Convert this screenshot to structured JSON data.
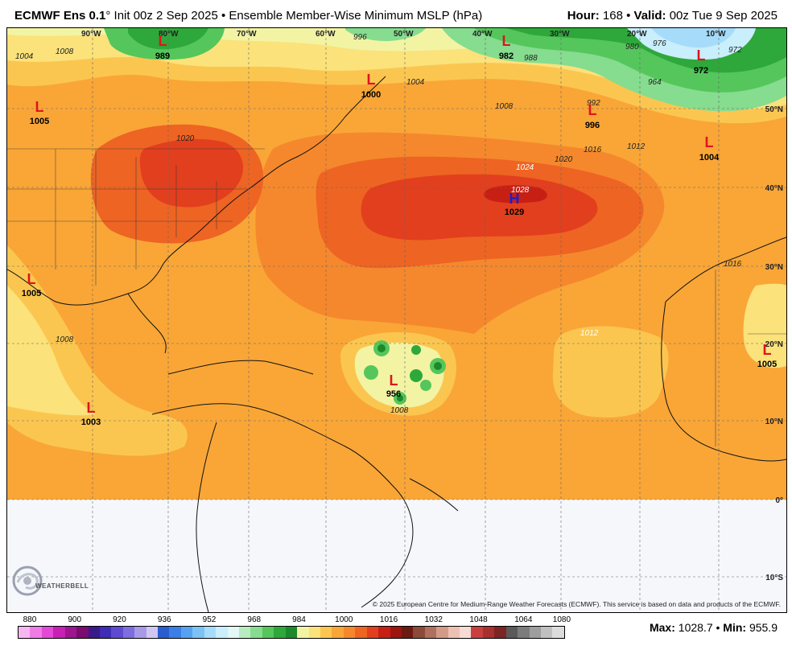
{
  "header": {
    "model_name": "ECMWF Ens 0.1",
    "degree_symbol": "°",
    "init_text": "Init 00z 2 Sep 2025",
    "separator": "•",
    "product_text": "Ensemble Member-Wise Minimum MSLP (hPa)",
    "hour_label": "Hour:",
    "hour_value": "168",
    "valid_label": "Valid:",
    "valid_value": "00z Tue 9 Sep 2025"
  },
  "map": {
    "longitude_labels": [
      "90°W",
      "80°W",
      "70°W",
      "60°W",
      "50°W",
      "40°W",
      "30°W",
      "20°W",
      "10°W"
    ],
    "latitude_labels": [
      "50°N",
      "40°N",
      "30°N",
      "20°N",
      "10°N",
      "0°",
      "10°S"
    ],
    "contour_labels": [
      "1004",
      "1008",
      "1012",
      "1016",
      "1020",
      "1024",
      "1028",
      "996",
      "988",
      "980",
      "976",
      "972",
      "964",
      "992"
    ],
    "pressure_centers": [
      {
        "type": "L",
        "value": "989",
        "color": "#e0141e"
      },
      {
        "type": "L",
        "value": "982",
        "color": "#e0141e"
      },
      {
        "type": "L",
        "value": "972",
        "color": "#e0141e"
      },
      {
        "type": "L",
        "value": "1000",
        "color": "#e0141e"
      },
      {
        "type": "L",
        "value": "996",
        "color": "#e0141e"
      },
      {
        "type": "L",
        "value": "1004",
        "color": "#e0141e"
      },
      {
        "type": "L",
        "value": "1005",
        "color": "#e0141e"
      },
      {
        "type": "H",
        "value": "1029",
        "color": "#1a20d0"
      },
      {
        "type": "L",
        "value": "1005",
        "color": "#e0141e"
      },
      {
        "type": "L",
        "value": "956",
        "color": "#e0141e"
      },
      {
        "type": "L",
        "value": "1005",
        "color": "#e0141e"
      },
      {
        "type": "L",
        "value": "1003",
        "color": "#e0141e"
      }
    ]
  },
  "colorbar": {
    "ticks": [
      "880",
      "900",
      "920",
      "936",
      "952",
      "968",
      "984",
      "1000",
      "1016",
      "1032",
      "1048",
      "1064",
      "1080"
    ],
    "colors": [
      "#f7b6f2",
      "#ef7be6",
      "#e448d6",
      "#c81fb4",
      "#9e1590",
      "#7a0d6e",
      "#3a1a8a",
      "#3f2db4",
      "#5d4ad0",
      "#7e6ddf",
      "#a89ae9",
      "#cfc7f2",
      "#2a5cd0",
      "#3a7ee6",
      "#56a2f0",
      "#7cc2f6",
      "#a6dcfa",
      "#c9eefc",
      "#e3f7f4",
      "#b8ecc0",
      "#86dc8f",
      "#55c65c",
      "#2ea83a",
      "#1c8a2a",
      "#f2f4a4",
      "#fbe27a",
      "#fbc650",
      "#f9a637",
      "#f5882d",
      "#ee6423",
      "#e23f1e",
      "#c81f14",
      "#9e1410",
      "#6e1a14",
      "#8c4a3a",
      "#b0705e",
      "#d49a88",
      "#eec0b4",
      "#f6dcd4",
      "#c94040",
      "#a83030",
      "#7d2424",
      "#5a5a5a",
      "#7c7c7c",
      "#9e9e9e",
      "#c0c0c0",
      "#dcdcdc"
    ]
  },
  "stats": {
    "max_label": "Max:",
    "max_value": "1028.7",
    "min_label": "Min:",
    "min_value": "955.9",
    "separator": "•"
  },
  "credit_text": "© 2025 European Centre for Medium-Range Weather Forecasts (ECMWF). This service is based on data and products of the ECMWF.",
  "logo_text": "WEATHERBELL"
}
